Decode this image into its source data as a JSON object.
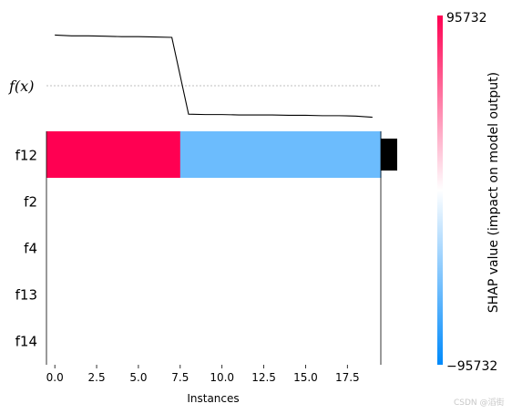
{
  "chart_data": {
    "type": "heatmap",
    "xlabel": "Instances",
    "fx_label": "f(x)",
    "x_range": [
      -0.5,
      19.5
    ],
    "x_ticks": [
      {
        "value": 0.0,
        "label": "0.0"
      },
      {
        "value": 2.5,
        "label": "2.5"
      },
      {
        "value": 5.0,
        "label": "5.0"
      },
      {
        "value": 7.5,
        "label": "7.5"
      },
      {
        "value": 10.0,
        "label": "10.0"
      },
      {
        "value": 12.5,
        "label": "12.5"
      },
      {
        "value": 15.0,
        "label": "15.0"
      },
      {
        "value": 17.5,
        "label": "17.5"
      }
    ],
    "features": [
      "f12",
      "f2",
      "f4",
      "f13",
      "f14"
    ],
    "shap_values": [
      [
        95732,
        95732,
        95732,
        95732,
        95732,
        95732,
        95732,
        95732,
        -55000,
        -55000,
        -55000,
        -55000,
        -55000,
        -55000,
        -55000,
        -55000,
        -55000,
        -55000,
        -55000,
        -55000
      ],
      [
        0,
        0,
        0,
        0,
        0,
        0,
        0,
        0,
        0,
        0,
        0,
        0,
        0,
        0,
        0,
        0,
        0,
        0,
        0,
        0
      ],
      [
        0,
        0,
        0,
        0,
        0,
        0,
        0,
        0,
        0,
        0,
        0,
        0,
        0,
        0,
        0,
        0,
        0,
        0,
        0,
        0
      ],
      [
        0,
        0,
        0,
        0,
        0,
        0,
        0,
        0,
        0,
        0,
        0,
        0,
        0,
        0,
        0,
        0,
        0,
        0,
        0,
        0
      ],
      [
        0,
        0,
        0,
        0,
        0,
        0,
        0,
        0,
        0,
        0,
        0,
        0,
        0,
        0,
        0,
        0,
        0,
        0,
        0,
        0
      ]
    ],
    "fx_values": [
      1.1,
      1.08,
      1.08,
      1.07,
      1.06,
      1.06,
      1.05,
      1.04,
      -0.95,
      -0.96,
      -0.96,
      -0.97,
      -0.97,
      -0.97,
      -0.98,
      -0.98,
      -0.99,
      -0.99,
      -1.0,
      -1.03
    ],
    "fx_range": [
      -1.3,
      1.3
    ],
    "importance": [
      1.0,
      0.0,
      0.0,
      0.0,
      0.0
    ],
    "colorbar": {
      "max_label": "95732",
      "min_label": "−95732",
      "vmin": -95732,
      "vmax": 95732,
      "title": "SHAP value (impact on model output)",
      "colors": [
        "#008afb",
        "#ffffff",
        "#ff0052"
      ]
    }
  },
  "watermark": "CSDN @滔街"
}
